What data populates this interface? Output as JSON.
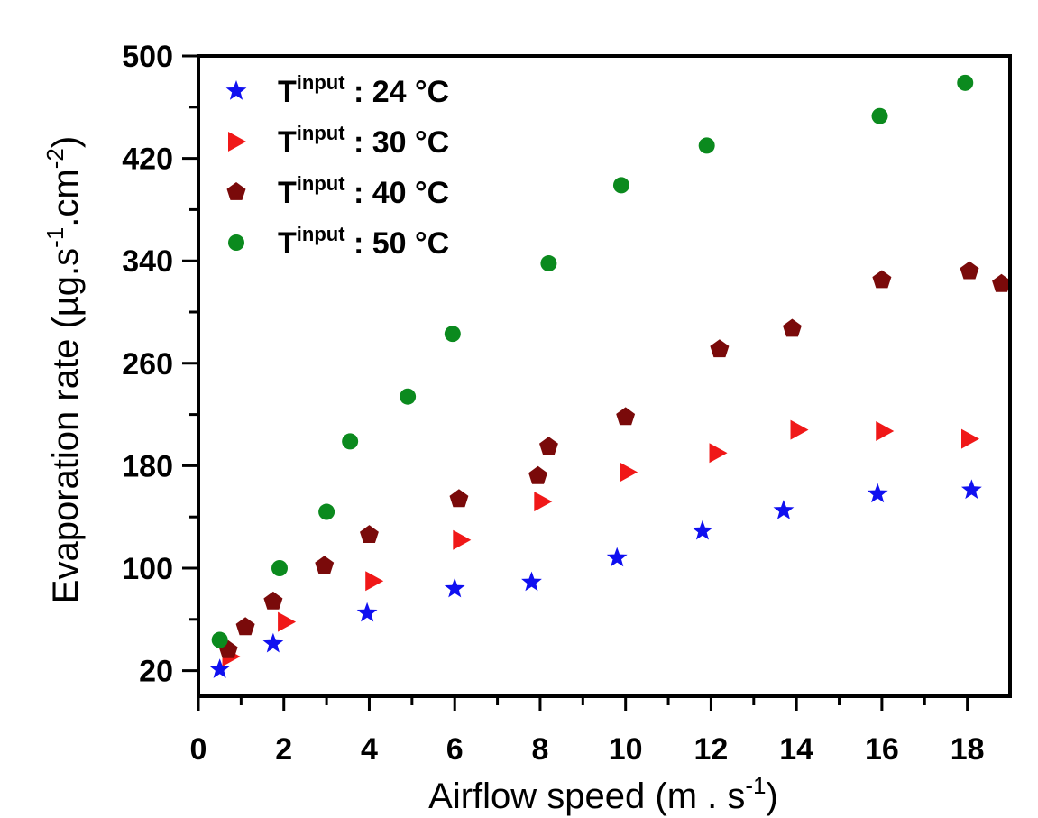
{
  "chart_data": {
    "type": "scatter",
    "xlabel": "Airflow speed (m . s-1)",
    "ylabel": "Evaporation rate (µg.s-1.cm-2)",
    "axis_labels": {
      "x_main": "Airflow speed (m . s",
      "x_sup": "-1",
      "x_close": ")",
      "y_main": "Evaporation rate (µg.s",
      "y_sup1": "-1",
      "y_mid": ".cm",
      "y_sup2": "-2",
      "y_close": ")"
    },
    "xlim": [
      0,
      19.0
    ],
    "ylim": [
      0,
      500
    ],
    "x_ticks": [
      0,
      2,
      4,
      6,
      8,
      10,
      12,
      14,
      16,
      18
    ],
    "y_ticks": [
      20,
      100,
      180,
      260,
      340,
      420,
      500
    ],
    "grid": false,
    "legend_position": "top-left",
    "series": [
      {
        "name": "Tinput : 24 °C",
        "legend_parts": {
          "base": "T",
          "sup": "input",
          "rest": " : 24 °C"
        },
        "marker": "star",
        "color": "#1010f0",
        "points": [
          [
            0.5,
            21
          ],
          [
            1.75,
            41
          ],
          [
            3.95,
            65
          ],
          [
            6.0,
            84
          ],
          [
            7.8,
            89
          ],
          [
            9.8,
            108
          ],
          [
            11.8,
            129
          ],
          [
            13.7,
            145
          ],
          [
            15.9,
            158
          ],
          [
            18.1,
            161
          ]
        ]
      },
      {
        "name": "Tinput : 30 °C",
        "legend_parts": {
          "base": "T",
          "sup": "input",
          "rest": " : 30 °C"
        },
        "marker": "triangle-right",
        "color": "#f01818",
        "points": [
          [
            0.75,
            31
          ],
          [
            2.05,
            58
          ],
          [
            4.1,
            90
          ],
          [
            6.15,
            122
          ],
          [
            8.05,
            152
          ],
          [
            10.05,
            175
          ],
          [
            12.15,
            190
          ],
          [
            14.05,
            208
          ],
          [
            16.05,
            207
          ],
          [
            18.05,
            201
          ]
        ]
      },
      {
        "name": "Tinput : 40 °C",
        "legend_parts": {
          "base": "T",
          "sup": "input",
          "rest": " : 40 °C"
        },
        "marker": "pentagon",
        "color": "#7a0a0a",
        "points": [
          [
            0.7,
            36
          ],
          [
            1.1,
            54
          ],
          [
            1.75,
            74
          ],
          [
            2.95,
            102
          ],
          [
            4.0,
            126
          ],
          [
            6.1,
            154
          ],
          [
            7.95,
            172
          ],
          [
            8.2,
            195
          ],
          [
            10.0,
            218
          ],
          [
            12.2,
            271
          ],
          [
            13.9,
            287
          ],
          [
            16.0,
            325
          ],
          [
            18.05,
            332
          ],
          [
            18.8,
            322
          ]
        ]
      },
      {
        "name": "Tinput : 50 °C",
        "legend_parts": {
          "base": "T",
          "sup": "input",
          "rest": " : 50 °C"
        },
        "marker": "circle",
        "color": "#0b8a1e",
        "points": [
          [
            0.5,
            44
          ],
          [
            1.9,
            100
          ],
          [
            3.0,
            144
          ],
          [
            3.55,
            199
          ],
          [
            4.9,
            234
          ],
          [
            5.95,
            283
          ],
          [
            8.2,
            338
          ],
          [
            9.9,
            399
          ],
          [
            11.9,
            430
          ],
          [
            15.95,
            453
          ],
          [
            17.95,
            479
          ]
        ]
      }
    ]
  }
}
